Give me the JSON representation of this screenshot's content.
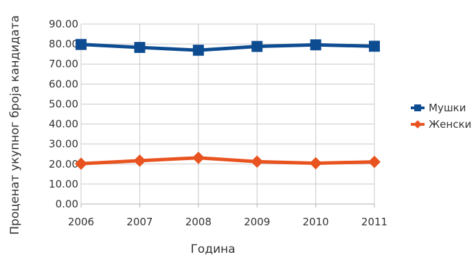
{
  "chart_data": {
    "type": "line",
    "title": "",
    "xlabel": "Година",
    "ylabel": "Проценат укупног броја кандидата",
    "x": [
      "2006",
      "2007",
      "2008",
      "2009",
      "2010",
      "2011"
    ],
    "ylim": [
      0,
      90
    ],
    "yticks": [
      "0.00",
      "10.00",
      "20.00",
      "30.00",
      "40.00",
      "50.00",
      "60.00",
      "70.00",
      "80.00",
      "90.00"
    ],
    "grid": true,
    "legend_position": "right",
    "series": [
      {
        "name": "Мушки",
        "values": [
          79.8,
          78.3,
          76.9,
          78.8,
          79.6,
          78.9
        ],
        "color": "#0e4c92",
        "marker": "square"
      },
      {
        "name": "Женски",
        "values": [
          20.2,
          21.7,
          23.1,
          21.2,
          20.4,
          21.1
        ],
        "color": "#e8531f",
        "marker": "diamond"
      }
    ]
  }
}
